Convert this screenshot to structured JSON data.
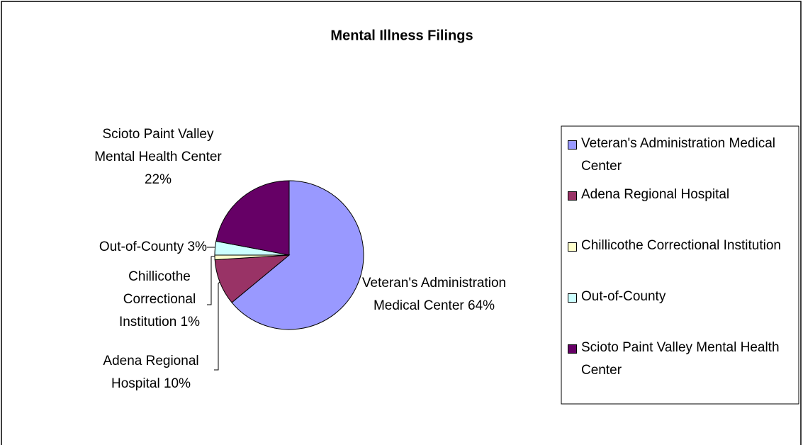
{
  "chart_data": {
    "type": "pie",
    "title": "Mental Illness Filings",
    "categories": [
      "Veteran's Administration Medical Center",
      "Adena Regional Hospital",
      "Chillicothe Correctional Institution",
      "Out-of-County",
      "Scioto Paint Valley Mental Health Center"
    ],
    "values": [
      64,
      10,
      1,
      3,
      22
    ],
    "value_labels": [
      "64%",
      "10%",
      "1%",
      "3%",
      "22%"
    ],
    "colors": [
      "#9999ff",
      "#993366",
      "#ffffcc",
      "#ccffff",
      "#660066"
    ],
    "legend": "right"
  }
}
